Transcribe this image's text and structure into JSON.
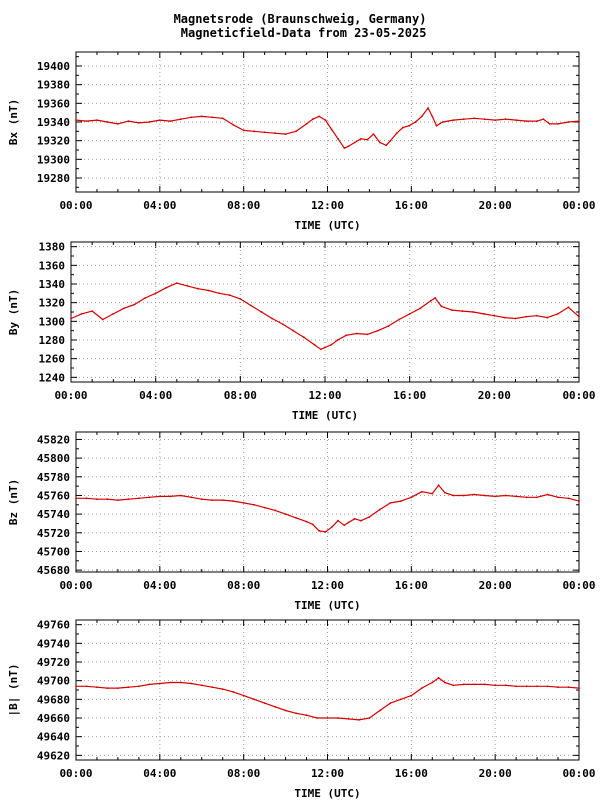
{
  "title_line1": "Magnetsrode (Braunschweig, Germany)",
  "title_line2": " Magneticfield-Data from 23-05-2025",
  "chart_data": [
    {
      "type": "line",
      "ylabel": "Bx (nT)",
      "xlabel": "TIME (UTC)",
      "ylim": [
        19265,
        19415
      ],
      "yticks": [
        19280,
        19300,
        19320,
        19340,
        19360,
        19380,
        19400
      ],
      "xticks": [
        "00:00",
        "04:00",
        "08:00",
        "12:00",
        "16:00",
        "20:00",
        "00:00"
      ],
      "grid": true,
      "color": "#d40000",
      "series": [
        {
          "x": [
            0,
            0.5,
            1,
            1.5,
            2,
            2.5,
            3,
            3.5,
            4,
            4.5,
            5,
            5.5,
            6,
            6.5,
            7,
            7.5,
            8,
            8.5,
            9,
            9.5,
            10,
            10.5,
            11,
            11.3,
            11.6,
            11.9,
            12.2,
            12.5,
            12.8,
            13,
            13.3,
            13.6,
            13.9,
            14.2,
            14.5,
            14.8,
            15,
            15.3,
            15.6,
            15.9,
            16.2,
            16.5,
            16.8,
            17,
            17.2,
            17.5,
            18,
            18.5,
            19,
            19.5,
            20,
            20.5,
            21,
            21.5,
            22,
            22.3,
            22.6,
            23,
            23.5,
            24
          ],
          "y": [
            19342,
            19341,
            19342,
            19340,
            19338,
            19341,
            19339,
            19340,
            19342,
            19341,
            19343,
            19345,
            19346,
            19345,
            19344,
            19337,
            19331,
            19330,
            19329,
            19328,
            19327,
            19330,
            19338,
            19343,
            19346,
            19342,
            19332,
            19322,
            19312,
            19314,
            19318,
            19322,
            19321,
            19327,
            19318,
            19315,
            19320,
            19328,
            19334,
            19336,
            19340,
            19346,
            19355,
            19346,
            19336,
            19340,
            19342,
            19343,
            19344,
            19343,
            19342,
            19343,
            19342,
            19341,
            19341,
            19343,
            19338,
            19338,
            19340,
            19341
          ]
        }
      ]
    },
    {
      "type": "line",
      "ylabel": "By (nT)",
      "xlabel": "TIME (UTC)",
      "ylim": [
        1235,
        1385
      ],
      "yticks": [
        1240,
        1260,
        1280,
        1300,
        1320,
        1340,
        1360,
        1380
      ],
      "xticks": [
        "00:00",
        "04:00",
        "08:00",
        "12:00",
        "16:00",
        "20:00",
        "00:00"
      ],
      "grid": true,
      "color": "#d40000",
      "series": [
        {
          "x": [
            0,
            0.5,
            1,
            1.5,
            2,
            2.5,
            3,
            3.5,
            4,
            4.5,
            5,
            5.5,
            6,
            6.5,
            7,
            7.5,
            8,
            8.5,
            9,
            9.5,
            10,
            10.5,
            11,
            11.5,
            11.8,
            12,
            12.3,
            12.6,
            13,
            13.5,
            14,
            14.5,
            15,
            15.5,
            16,
            16.5,
            17,
            17.2,
            17.5,
            18,
            18.5,
            19,
            19.5,
            20,
            20.5,
            21,
            21.5,
            22,
            22.5,
            23,
            23.5,
            24
          ],
          "y": [
            1303,
            1308,
            1311,
            1302,
            1308,
            1314,
            1318,
            1325,
            1330,
            1336,
            1341,
            1338,
            1335,
            1333,
            1330,
            1328,
            1324,
            1317,
            1310,
            1303,
            1297,
            1290,
            1283,
            1275,
            1270,
            1272,
            1275,
            1280,
            1285,
            1287,
            1286,
            1290,
            1295,
            1302,
            1308,
            1314,
            1322,
            1325,
            1316,
            1312,
            1311,
            1310,
            1308,
            1306,
            1304,
            1303,
            1305,
            1306,
            1304,
            1308,
            1315,
            1305
          ]
        }
      ]
    },
    {
      "type": "line",
      "ylabel": "Bz (nT)",
      "xlabel": "TIME (UTC)",
      "ylim": [
        45678,
        45828
      ],
      "yticks": [
        45680,
        45700,
        45720,
        45740,
        45760,
        45780,
        45800,
        45820
      ],
      "xticks": [
        "00:00",
        "04:00",
        "08:00",
        "12:00",
        "16:00",
        "20:00",
        "00:00"
      ],
      "grid": true,
      "color": "#d40000",
      "series": [
        {
          "x": [
            0,
            0.5,
            1,
            1.5,
            2,
            2.5,
            3,
            3.5,
            4,
            4.5,
            5,
            5.5,
            6,
            6.5,
            7,
            7.5,
            8,
            8.5,
            9,
            9.5,
            10,
            10.5,
            11,
            11.3,
            11.6,
            11.9,
            12.2,
            12.5,
            12.8,
            13,
            13.3,
            13.6,
            14,
            14.5,
            15,
            15.5,
            16,
            16.5,
            17,
            17.3,
            17.6,
            18,
            18.5,
            19,
            19.5,
            20,
            20.5,
            21,
            21.5,
            22,
            22.5,
            23,
            23.5,
            24
          ],
          "y": [
            45757,
            45757,
            45756,
            45756,
            45755,
            45756,
            45757,
            45758,
            45759,
            45759,
            45760,
            45758,
            45756,
            45755,
            45755,
            45754,
            45752,
            45750,
            45747,
            45744,
            45740,
            45736,
            45732,
            45729,
            45722,
            45721,
            45726,
            45733,
            45728,
            45731,
            45735,
            45733,
            45737,
            45745,
            45752,
            45754,
            45758,
            45764,
            45762,
            45771,
            45763,
            45760,
            45760,
            45761,
            45760,
            45759,
            45760,
            45759,
            45758,
            45758,
            45761,
            45758,
            45757,
            45754
          ]
        }
      ]
    },
    {
      "type": "line",
      "ylabel": "|B| (nT)",
      "xlabel": "TIME (UTC)",
      "ylim": [
        49615,
        49765
      ],
      "yticks": [
        49620,
        49640,
        49660,
        49680,
        49700,
        49720,
        49740,
        49760
      ],
      "xticks": [
        "00:00",
        "04:00",
        "08:00",
        "12:00",
        "16:00",
        "20:00",
        "00:00"
      ],
      "grid": true,
      "color": "#d40000",
      "series": [
        {
          "x": [
            0,
            0.5,
            1,
            1.5,
            2,
            2.5,
            3,
            3.5,
            4,
            4.5,
            5,
            5.5,
            6,
            6.5,
            7,
            7.5,
            8,
            8.5,
            9,
            9.5,
            10,
            10.5,
            11,
            11.5,
            12,
            12.5,
            13,
            13.5,
            14,
            14.5,
            15,
            15.5,
            16,
            16.5,
            17,
            17.3,
            17.6,
            18,
            18.5,
            19,
            19.5,
            20,
            20.5,
            21,
            21.5,
            22,
            22.5,
            23,
            23.5,
            24
          ],
          "y": [
            49694,
            49694,
            49693,
            49692,
            49692,
            49693,
            49694,
            49696,
            49697,
            49698,
            49698,
            49697,
            49695,
            49693,
            49691,
            49688,
            49684,
            49680,
            49676,
            49672,
            49668,
            49665,
            49663,
            49660,
            49660,
            49660,
            49659,
            49658,
            49660,
            49668,
            49676,
            49680,
            49684,
            49692,
            49698,
            49703,
            49698,
            49695,
            49696,
            49696,
            49696,
            49695,
            49695,
            49694,
            49694,
            49694,
            49694,
            49693,
            49693,
            49692
          ]
        }
      ]
    }
  ]
}
